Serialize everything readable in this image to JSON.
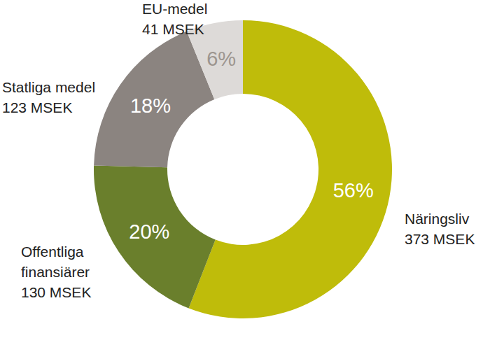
{
  "chart_data": {
    "type": "donut",
    "categories": [
      "Näringsliv",
      "Offentliga\nfinansiärer",
      "Statliga medel",
      "EU-medel"
    ],
    "values": [
      373,
      130,
      123,
      41
    ],
    "value_labels": [
      "373 MSEK",
      "130 MSEK",
      "123 MSEK",
      "41 MSEK"
    ],
    "percent_labels": [
      "56%",
      "20%",
      "18%",
      "6%"
    ],
    "colors": [
      "#bfbc0a",
      "#6a7f2c",
      "#8b8480",
      "#dddad8"
    ],
    "data_labels": true
  }
}
